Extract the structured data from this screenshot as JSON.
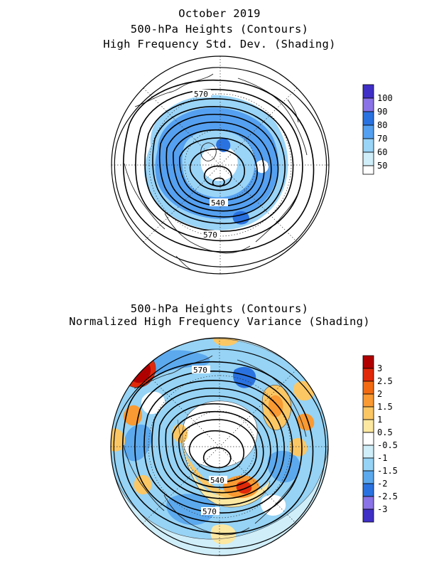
{
  "top_panel": {
    "title_lines": [
      "October 2019",
      "500-hPa Heights (Contours)",
      "High Frequency Std. Dev. (Shading)"
    ],
    "contour_labels": [
      "570",
      "540",
      "570"
    ],
    "colorbar": {
      "labels": [
        "100",
        "90",
        "80",
        "70",
        "60",
        "50"
      ],
      "colors": [
        "#3f2fc6",
        "#8a73e6",
        "#2a72e0",
        "#55a0f0",
        "#9ad4f7",
        "#ffffff"
      ]
    }
  },
  "bottom_panel": {
    "title_lines": [
      "500-hPa Heights (Contours)",
      "Normalized High Frequency Variance (Shading)"
    ],
    "contour_labels": [
      "570",
      "540",
      "570"
    ],
    "colorbar": {
      "labels": [
        "3",
        "2.5",
        "2",
        "1.5",
        "1",
        "0.5",
        "-0.5",
        "-1",
        "-1.5",
        "-2",
        "-2.5",
        "-3"
      ],
      "colors": [
        "#b00000",
        "#e0290a",
        "#f26b12",
        "#f99a32",
        "#fbc765",
        "#fde8a2",
        "#ffffff",
        "#cfeefa",
        "#96d3f5",
        "#5ca9ee",
        "#2a72e0",
        "#8a73e6",
        "#3f2fc6"
      ]
    }
  }
}
